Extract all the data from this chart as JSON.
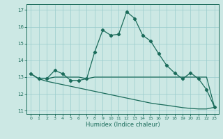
{
  "title": "",
  "xlabel": "Humidex (Indice chaleur)",
  "bg_color": "#cce8e4",
  "grid_color": "#99cccc",
  "line_color": "#1a6b5a",
  "xlim": [
    -0.5,
    23.5
  ],
  "ylim": [
    10.8,
    17.35
  ],
  "xticks": [
    0,
    1,
    2,
    3,
    4,
    5,
    6,
    7,
    8,
    9,
    10,
    11,
    12,
    13,
    14,
    15,
    16,
    17,
    18,
    19,
    20,
    21,
    22,
    23
  ],
  "yticks": [
    11,
    12,
    13,
    14,
    15,
    16,
    17
  ],
  "curve1_x": [
    0,
    1,
    2,
    3,
    4,
    5,
    6,
    7,
    8,
    9,
    10,
    11,
    12,
    13,
    14,
    15,
    16,
    17,
    18,
    19,
    20,
    21,
    22,
    23
  ],
  "curve1_y": [
    13.2,
    12.9,
    12.9,
    13.4,
    13.2,
    12.8,
    12.8,
    12.9,
    14.5,
    15.8,
    15.5,
    15.55,
    16.9,
    16.5,
    15.5,
    15.15,
    14.4,
    13.7,
    13.25,
    12.9,
    13.25,
    12.9,
    12.25,
    11.2
  ],
  "curve2_x": [
    0,
    1,
    2,
    3,
    4,
    5,
    6,
    7,
    8,
    9,
    10,
    11,
    12,
    13,
    14,
    15,
    16,
    17,
    18,
    19,
    20,
    21,
    22,
    23
  ],
  "curve2_y": [
    13.2,
    12.9,
    12.9,
    13.0,
    13.0,
    13.0,
    13.0,
    12.9,
    13.0,
    13.0,
    13.0,
    13.0,
    13.0,
    13.0,
    13.0,
    13.0,
    13.0,
    13.0,
    13.0,
    13.0,
    13.0,
    13.0,
    13.0,
    11.2
  ],
  "curve3_x": [
    0,
    1,
    2,
    3,
    4,
    5,
    6,
    7,
    8,
    9,
    10,
    11,
    12,
    13,
    14,
    15,
    16,
    17,
    18,
    19,
    20,
    21,
    22,
    23
  ],
  "curve3_y": [
    13.2,
    12.9,
    12.75,
    12.65,
    12.55,
    12.45,
    12.35,
    12.25,
    12.15,
    12.05,
    11.95,
    11.85,
    11.75,
    11.65,
    11.55,
    11.45,
    11.38,
    11.32,
    11.25,
    11.18,
    11.13,
    11.1,
    11.1,
    11.2
  ]
}
